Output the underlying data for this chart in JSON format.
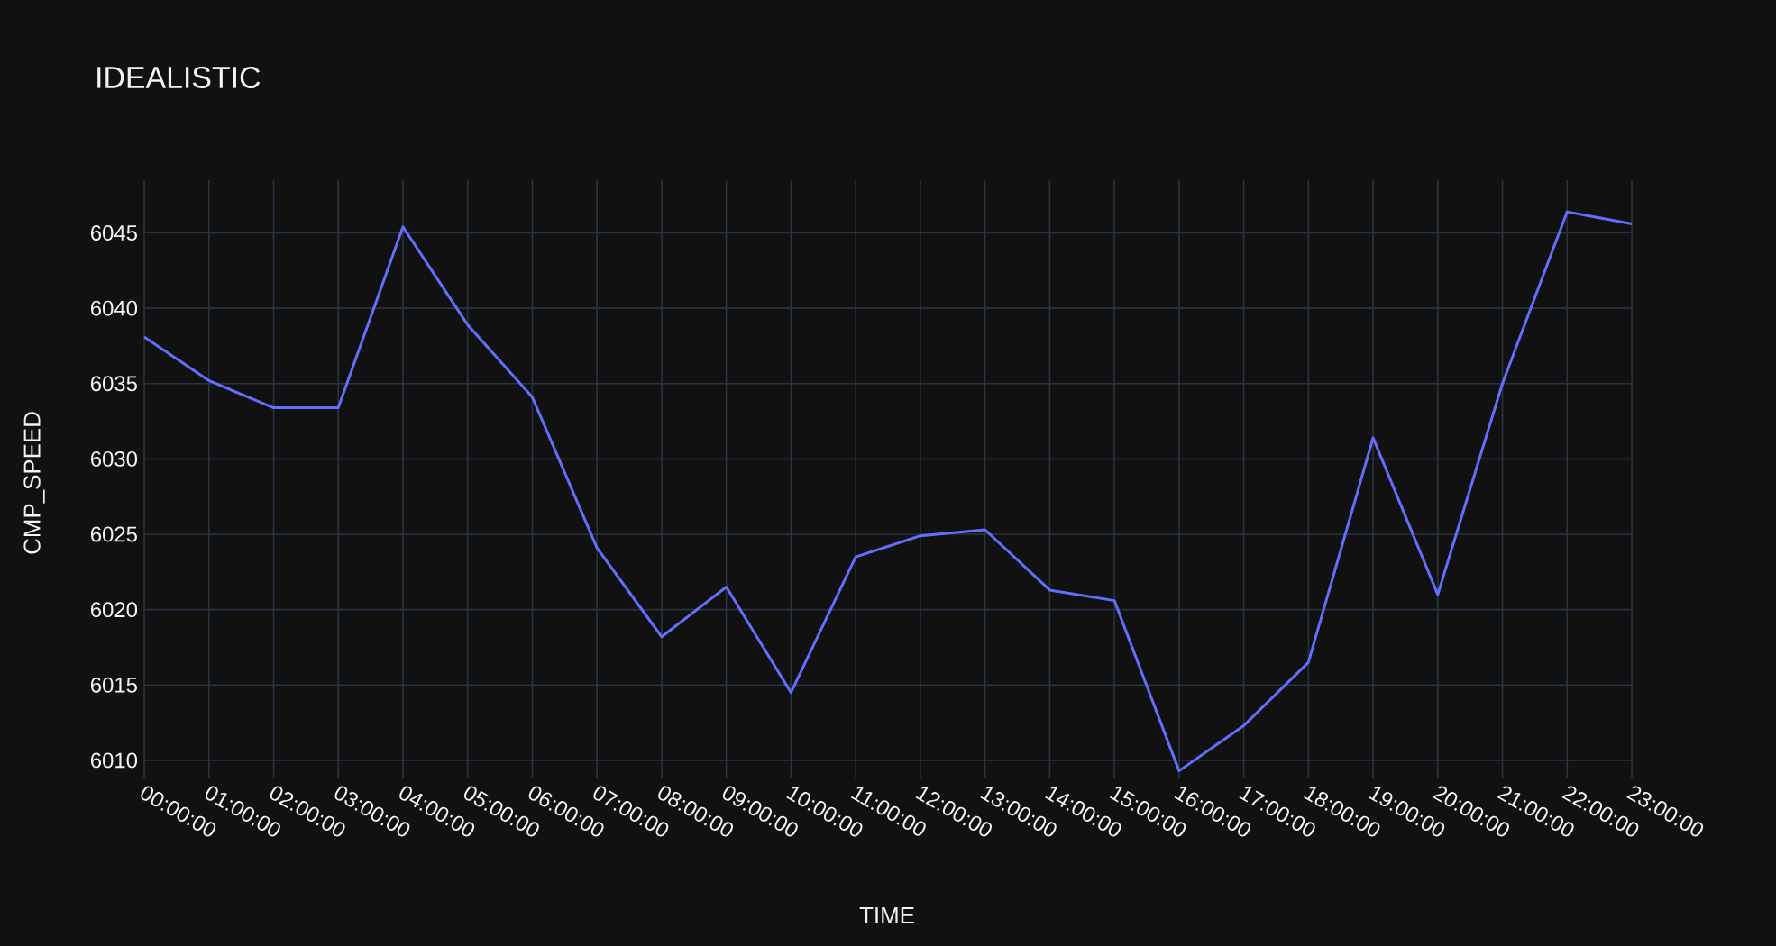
{
  "chart_data": {
    "type": "line",
    "title": "IDEALISTIC",
    "xlabel": "TIME",
    "ylabel": "CMP_SPEED",
    "x": [
      0,
      1,
      2,
      3,
      4,
      5,
      6,
      7,
      8,
      9,
      10,
      11,
      12,
      13,
      14,
      15,
      16,
      17,
      18,
      19,
      20,
      21,
      22,
      23
    ],
    "series": [
      {
        "color": "#636efa",
        "values": [
          6038.1,
          6035.2,
          6033.4,
          6033.4,
          6045.4,
          6038.9,
          6034.1,
          6024.1,
          6018.2,
          6021.5,
          6014.5,
          6023.5,
          6024.9,
          6025.3,
          6021.3,
          6020.6,
          6009.3,
          6012.3,
          6016.5,
          6031.4,
          6021.0,
          6035.0,
          6046.4,
          6045.6
        ]
      }
    ],
    "xlim": [
      0,
      23
    ],
    "ylim": [
      6008.8,
      6048.5
    ],
    "xticks": [
      {
        "value": 0,
        "label": "00:00:00"
      },
      {
        "value": 1,
        "label": "01:00:00"
      },
      {
        "value": 2,
        "label": "02:00:00"
      },
      {
        "value": 3,
        "label": "03:00:00"
      },
      {
        "value": 4,
        "label": "04:00:00"
      },
      {
        "value": 5,
        "label": "05:00:00"
      },
      {
        "value": 6,
        "label": "06:00:00"
      },
      {
        "value": 7,
        "label": "07:00:00"
      },
      {
        "value": 8,
        "label": "08:00:00"
      },
      {
        "value": 9,
        "label": "09:00:00"
      },
      {
        "value": 10,
        "label": "10:00:00"
      },
      {
        "value": 11,
        "label": "11:00:00"
      },
      {
        "value": 12,
        "label": "12:00:00"
      },
      {
        "value": 13,
        "label": "13:00:00"
      },
      {
        "value": 14,
        "label": "14:00:00"
      },
      {
        "value": 15,
        "label": "15:00:00"
      },
      {
        "value": 16,
        "label": "16:00:00"
      },
      {
        "value": 17,
        "label": "17:00:00"
      },
      {
        "value": 18,
        "label": "18:00:00"
      },
      {
        "value": 19,
        "label": "19:00:00"
      },
      {
        "value": 20,
        "label": "20:00:00"
      },
      {
        "value": 21,
        "label": "21:00:00"
      },
      {
        "value": 22,
        "label": "22:00:00"
      },
      {
        "value": 23,
        "label": "23:00:00"
      }
    ],
    "yticks": [
      6010,
      6015,
      6020,
      6025,
      6030,
      6035,
      6040,
      6045
    ],
    "grid": true,
    "line_style": "solid",
    "marker": "none"
  }
}
